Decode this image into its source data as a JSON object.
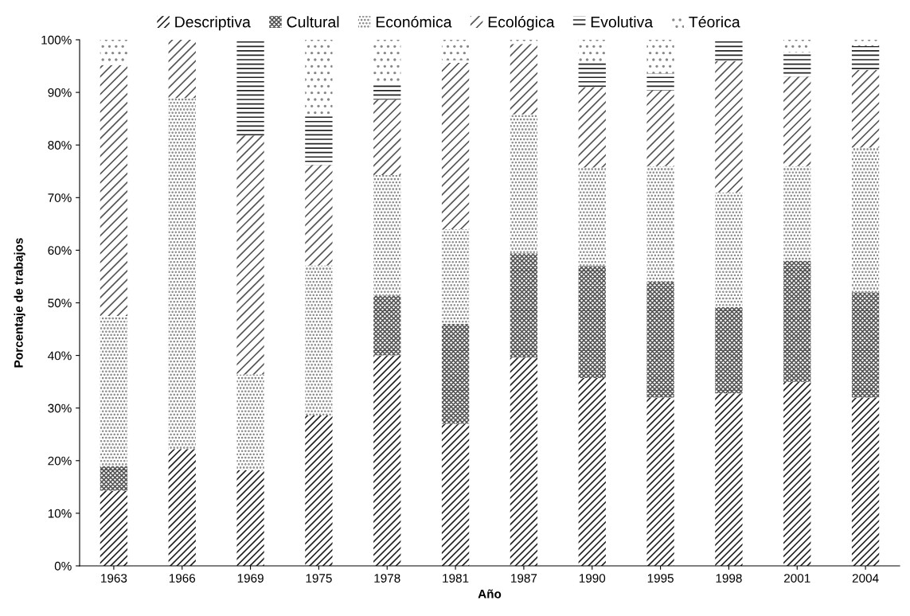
{
  "chart_data": {
    "type": "bar",
    "stacked": true,
    "xlabel": "Año",
    "ylabel": "Porcentaje de trabajos",
    "categories": [
      "1963",
      "1966",
      "1969",
      "1975",
      "1978",
      "1981",
      "1987",
      "1990",
      "1995",
      "1998",
      "2001",
      "2004"
    ],
    "ylim": [
      0,
      100
    ],
    "yticks": [
      {
        "value": 0,
        "label": "0%"
      },
      {
        "value": 10,
        "label": "10%"
      },
      {
        "value": 20,
        "label": "20%"
      },
      {
        "value": 30,
        "label": "30%"
      },
      {
        "value": 40,
        "label": "40%"
      },
      {
        "value": 50,
        "label": "50%"
      },
      {
        "value": 60,
        "label": "60%"
      },
      {
        "value": 70,
        "label": "70%"
      },
      {
        "value": 80,
        "label": "80%"
      },
      {
        "value": 90,
        "label": "90%"
      },
      {
        "value": 100,
        "label": "100%"
      }
    ],
    "grid": false,
    "legend": "top",
    "series": [
      {
        "name": "Descriptiva",
        "color": "#222222",
        "values": [
          14.3,
          22.2,
          18.2,
          28.6,
          40,
          27,
          39.6,
          35.7,
          32,
          32.8,
          35,
          32
        ]
      },
      {
        "name": "Cultural",
        "color": "#555555",
        "values": [
          4.7,
          0,
          0,
          0,
          11.4,
          19,
          19.8,
          21.3,
          22,
          16.4,
          23,
          20
        ]
      },
      {
        "name": "Económica",
        "color": "#777777",
        "values": [
          28.5,
          66.7,
          18.2,
          28.5,
          22.9,
          18,
          26.4,
          18.7,
          22,
          21.8,
          18,
          27.5
        ]
      },
      {
        "name": "Ecológica",
        "color": "#555555",
        "values": [
          47.7,
          11.1,
          45.4,
          19.1,
          14.3,
          31.6,
          13.4,
          15.3,
          14.4,
          25,
          17,
          14.8
        ]
      },
      {
        "name": "Evolutiva",
        "color": "#222222",
        "values": [
          0,
          0,
          18.2,
          9.5,
          2.8,
          0.5,
          0,
          4.7,
          3.2,
          4,
          4.6,
          4.5
        ]
      },
      {
        "name": "Téorica",
        "color": "#888888",
        "values": [
          4.8,
          0,
          0,
          14.3,
          8.6,
          3.9,
          0.8,
          4.3,
          6.4,
          0,
          2.4,
          1.2
        ]
      }
    ]
  }
}
